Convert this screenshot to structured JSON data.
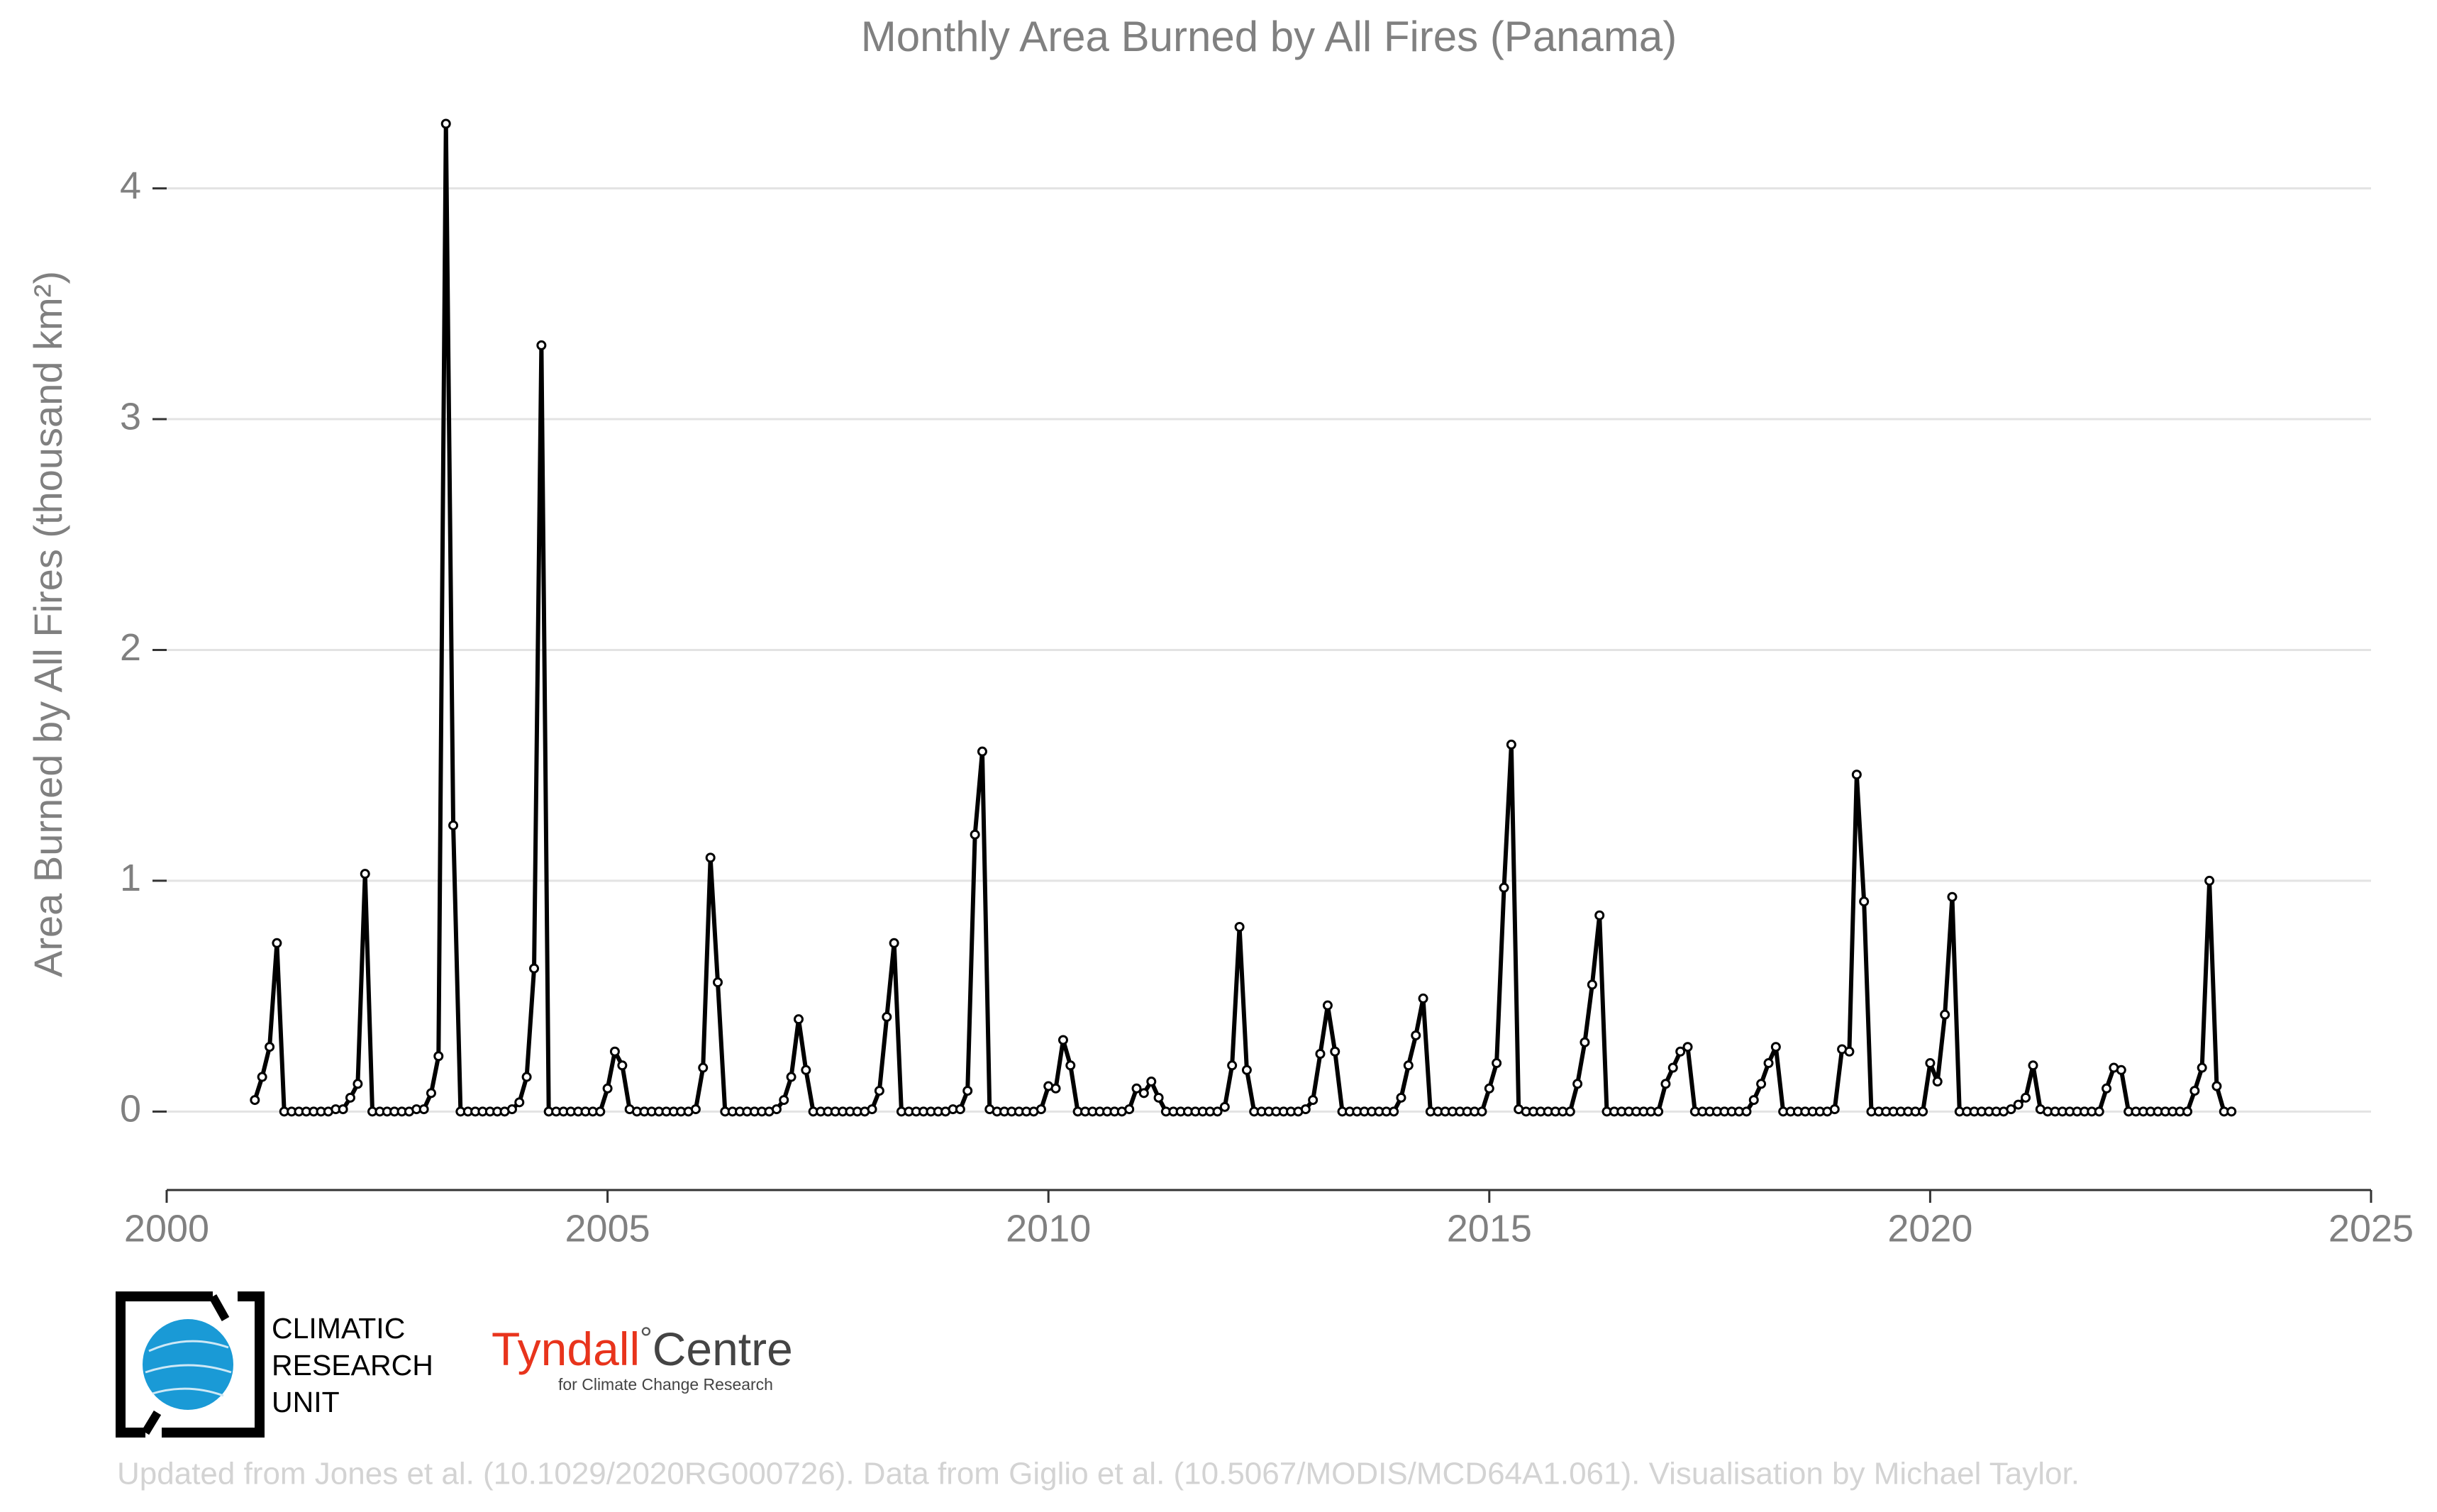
{
  "chart_data": {
    "type": "line",
    "title": "Monthly Area Burned by All Fires (Panama)",
    "y_label": "Area Burned by All Fires (thousand km²)",
    "color": "#000000",
    "xlim": [
      2000,
      2025
    ],
    "xticks": [
      2000,
      2005,
      2010,
      2015,
      2020,
      2025
    ],
    "ylim": [
      -0.34,
      4.3
    ],
    "yticks": [
      0,
      1,
      2,
      3,
      4
    ],
    "grid": true,
    "x": [
      2001,
      2001.083,
      2001.167,
      2001.25,
      2001.333,
      2001.417,
      2001.5,
      2001.583,
      2001.667,
      2001.75,
      2001.833,
      2001.917,
      2002,
      2002.083,
      2002.167,
      2002.25,
      2002.333,
      2002.417,
      2002.5,
      2002.583,
      2002.667,
      2002.75,
      2002.833,
      2002.917,
      2003,
      2003.083,
      2003.167,
      2003.25,
      2003.333,
      2003.417,
      2003.5,
      2003.583,
      2003.667,
      2003.75,
      2003.833,
      2003.917,
      2004,
      2004.083,
      2004.167,
      2004.25,
      2004.333,
      2004.417,
      2004.5,
      2004.583,
      2004.667,
      2004.75,
      2004.833,
      2004.917,
      2005,
      2005.083,
      2005.167,
      2005.25,
      2005.333,
      2005.417,
      2005.5,
      2005.583,
      2005.667,
      2005.75,
      2005.833,
      2005.917,
      2006,
      2006.083,
      2006.167,
      2006.25,
      2006.333,
      2006.417,
      2006.5,
      2006.583,
      2006.667,
      2006.75,
      2006.833,
      2006.917,
      2007,
      2007.083,
      2007.167,
      2007.25,
      2007.333,
      2007.417,
      2007.5,
      2007.583,
      2007.667,
      2007.75,
      2007.833,
      2007.917,
      2008,
      2008.083,
      2008.167,
      2008.25,
      2008.333,
      2008.417,
      2008.5,
      2008.583,
      2008.667,
      2008.75,
      2008.833,
      2008.917,
      2009,
      2009.083,
      2009.167,
      2009.25,
      2009.333,
      2009.417,
      2009.5,
      2009.583,
      2009.667,
      2009.75,
      2009.833,
      2009.917,
      2010,
      2010.083,
      2010.167,
      2010.25,
      2010.333,
      2010.417,
      2010.5,
      2010.583,
      2010.667,
      2010.75,
      2010.833,
      2010.917,
      2011,
      2011.083,
      2011.167,
      2011.25,
      2011.333,
      2011.417,
      2011.5,
      2011.583,
      2011.667,
      2011.75,
      2011.833,
      2011.917,
      2012,
      2012.083,
      2012.167,
      2012.25,
      2012.333,
      2012.417,
      2012.5,
      2012.583,
      2012.667,
      2012.75,
      2012.833,
      2012.917,
      2013,
      2013.083,
      2013.167,
      2013.25,
      2013.333,
      2013.417,
      2013.5,
      2013.583,
      2013.667,
      2013.75,
      2013.833,
      2013.917,
      2014,
      2014.083,
      2014.167,
      2014.25,
      2014.333,
      2014.417,
      2014.5,
      2014.583,
      2014.667,
      2014.75,
      2014.833,
      2014.917,
      2015,
      2015.083,
      2015.167,
      2015.25,
      2015.333,
      2015.417,
      2015.5,
      2015.583,
      2015.667,
      2015.75,
      2015.833,
      2015.917,
      2016,
      2016.083,
      2016.167,
      2016.25,
      2016.333,
      2016.417,
      2016.5,
      2016.583,
      2016.667,
      2016.75,
      2016.833,
      2016.917,
      2017,
      2017.083,
      2017.167,
      2017.25,
      2017.333,
      2017.417,
      2017.5,
      2017.583,
      2017.667,
      2017.75,
      2017.833,
      2017.917,
      2018,
      2018.083,
      2018.167,
      2018.25,
      2018.333,
      2018.417,
      2018.5,
      2018.583,
      2018.667,
      2018.75,
      2018.833,
      2018.917,
      2019,
      2019.083,
      2019.167,
      2019.25,
      2019.333,
      2019.417,
      2019.5,
      2019.583,
      2019.667,
      2019.75,
      2019.833,
      2019.917,
      2020,
      2020.083,
      2020.167,
      2020.25,
      2020.333,
      2020.417,
      2020.5,
      2020.583,
      2020.667,
      2020.75,
      2020.833,
      2020.917,
      2021,
      2021.083,
      2021.167,
      2021.25,
      2021.333,
      2021.417,
      2021.5,
      2021.583,
      2021.667,
      2021.75,
      2021.833,
      2021.917,
      2022,
      2022.083,
      2022.167,
      2022.25,
      2022.333,
      2022.417,
      2022.5,
      2022.583,
      2022.667,
      2022.75,
      2022.833,
      2022.917,
      2023,
      2023.083,
      2023.167,
      2023.25,
      2023.333,
      2023.417
    ],
    "values": [
      0.05,
      0.15,
      0.28,
      0.73,
      0,
      0,
      0,
      0,
      0,
      0,
      0,
      0.01,
      0.01,
      0.06,
      0.12,
      1.03,
      0,
      0,
      0,
      0,
      0,
      0,
      0.01,
      0.01,
      0.08,
      0.24,
      4.28,
      1.24,
      0,
      0,
      0,
      0,
      0,
      0,
      0,
      0.01,
      0.04,
      0.15,
      0.62,
      3.32,
      0,
      0,
      0,
      0,
      0,
      0,
      0,
      0,
      0.1,
      0.26,
      0.2,
      0.01,
      0,
      0,
      0,
      0,
      0,
      0,
      0,
      0,
      0.01,
      0.19,
      1.1,
      0.56,
      0,
      0,
      0,
      0,
      0,
      0,
      0,
      0.01,
      0.05,
      0.15,
      0.4,
      0.18,
      0,
      0,
      0,
      0,
      0,
      0,
      0,
      0,
      0.01,
      0.09,
      0.41,
      0.73,
      0,
      0,
      0,
      0,
      0,
      0,
      0,
      0.01,
      0.01,
      0.09,
      1.2,
      1.56,
      0.01,
      0,
      0,
      0,
      0,
      0,
      0,
      0.01,
      0.11,
      0.1,
      0.31,
      0.2,
      0,
      0,
      0,
      0,
      0,
      0,
      0,
      0.01,
      0.1,
      0.08,
      0.13,
      0.06,
      0,
      0,
      0,
      0,
      0,
      0,
      0,
      0,
      0.02,
      0.2,
      0.8,
      0.18,
      0,
      0,
      0,
      0,
      0,
      0,
      0,
      0.01,
      0.05,
      0.25,
      0.46,
      0.26,
      0,
      0,
      0,
      0,
      0,
      0,
      0,
      0,
      0.06,
      0.2,
      0.33,
      0.49,
      0,
      0,
      0,
      0,
      0,
      0,
      0,
      0,
      0.1,
      0.21,
      0.97,
      1.59,
      0.01,
      0,
      0,
      0,
      0,
      0,
      0,
      0,
      0.12,
      0.3,
      0.55,
      0.85,
      0,
      0,
      0,
      0,
      0,
      0,
      0,
      0,
      0.12,
      0.19,
      0.26,
      0.28,
      0,
      0,
      0,
      0,
      0,
      0,
      0,
      0,
      0.05,
      0.12,
      0.21,
      0.28,
      0,
      0,
      0,
      0,
      0,
      0,
      0,
      0.01,
      0.27,
      0.26,
      1.46,
      0.91,
      0,
      0,
      0,
      0,
      0,
      0,
      0,
      0,
      0.21,
      0.13,
      0.42,
      0.93,
      0,
      0,
      0,
      0,
      0,
      0,
      0,
      0.01,
      0.03,
      0.06,
      0.2,
      0.01,
      0,
      0,
      0,
      0,
      0,
      0,
      0,
      0,
      0.1,
      0.19,
      0.18,
      0,
      0,
      0,
      0,
      0,
      0,
      0,
      0,
      0,
      0.09,
      0.19,
      1.0,
      0.11,
      0,
      0
    ]
  },
  "logos": {
    "cru": [
      "CLIMATIC",
      "RESEARCH",
      "UNIT"
    ],
    "tyndall_name": "Tyndall",
    "tyndall_mark": "°",
    "tyndall_centre": "Centre",
    "tyndall_sub": "for Climate Change Research"
  },
  "footer": "Updated from Jones et al. (10.1029/2020RG000726). Data from Giglio et al. (10.5067/MODIS/MCD64A1.061). Visualisation by Michael Taylor."
}
